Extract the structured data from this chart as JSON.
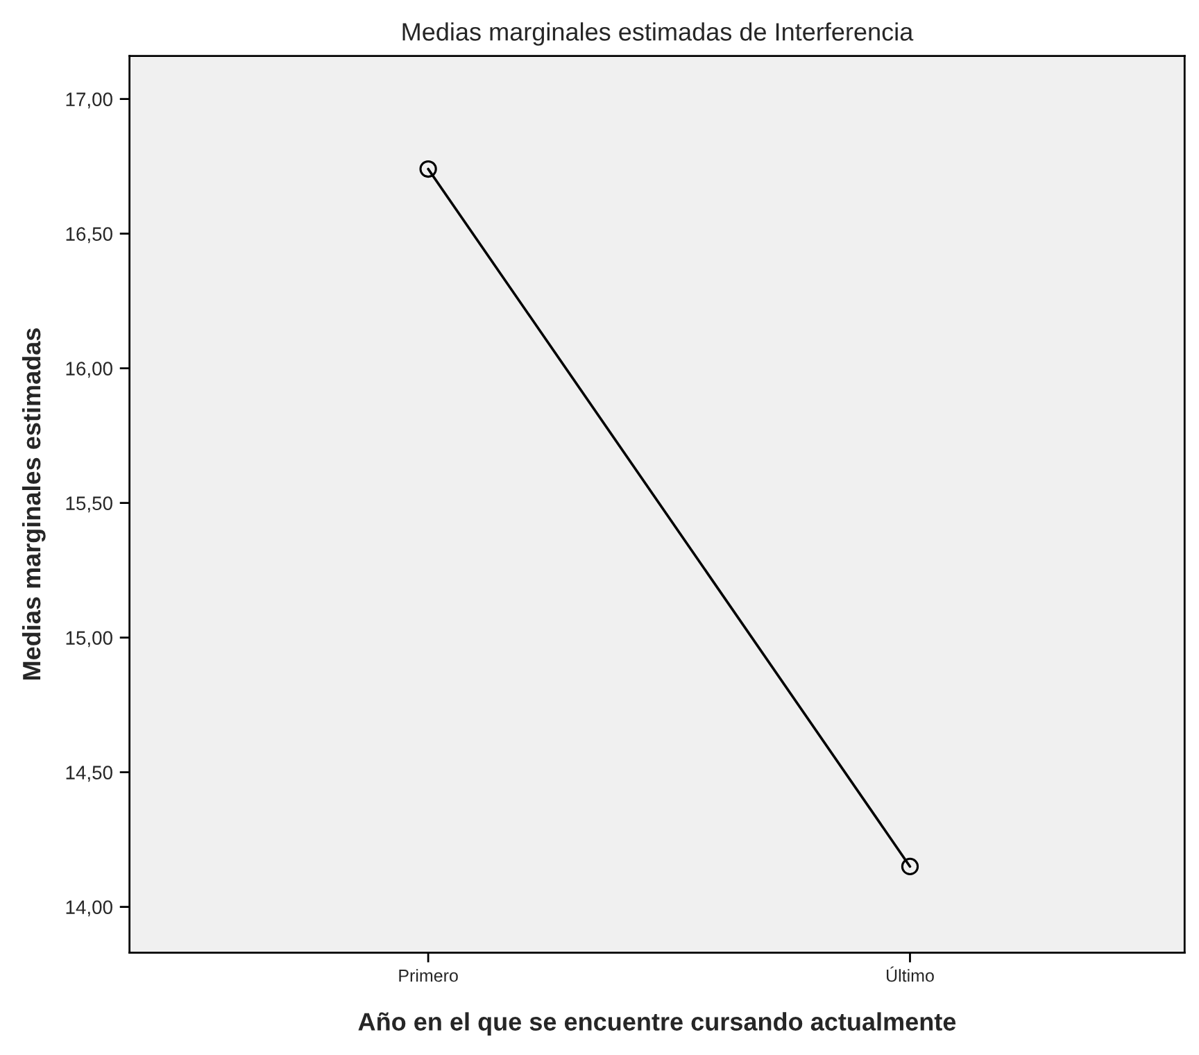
{
  "chart_data": {
    "type": "line",
    "title": "Medias marginales estimadas de Interferencia",
    "xlabel": "Año en el que se encuentre cursando actualmente",
    "ylabel": "Medias marginales estimadas",
    "categories": [
      "Primero",
      "Último"
    ],
    "series": [
      {
        "color": "#000000",
        "values": [
          16.74,
          14.15
        ]
      }
    ],
    "ylim": [
      13.83,
      17.16
    ],
    "yticks": [
      {
        "value": 14,
        "label": "14,00"
      },
      {
        "value": 14.5,
        "label": "14,50"
      },
      {
        "value": 15,
        "label": "15,00"
      },
      {
        "value": 15.5,
        "label": "15,50"
      },
      {
        "value": 16,
        "label": "16,00"
      },
      {
        "value": 16.5,
        "label": "16,50"
      },
      {
        "value": 17,
        "label": "17,00"
      }
    ],
    "marker": "circle",
    "line_style": "solid",
    "grid": false,
    "legend": false
  }
}
